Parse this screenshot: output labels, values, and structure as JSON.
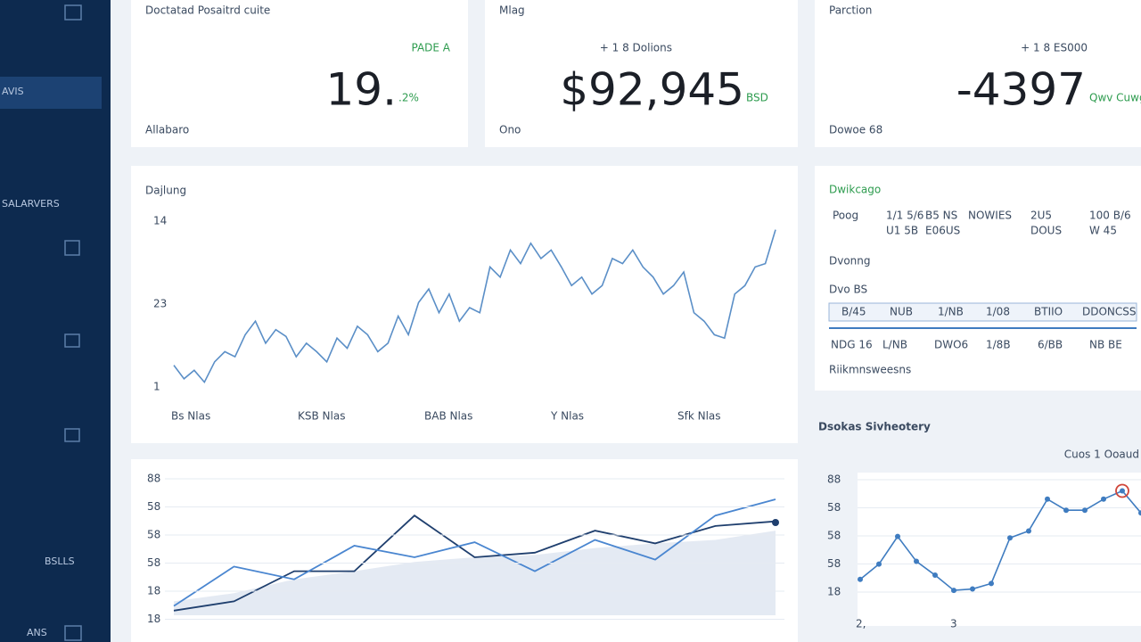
{
  "sidebar": {
    "items": [
      "AVIS",
      "SALARVERS",
      "BSLLS",
      "ANS"
    ]
  },
  "kpis": [
    {
      "title": "Doctatad Posaitrd cuite",
      "delta": "PADE A",
      "value": "19.",
      "unit": ".2%",
      "label": "Allabaro"
    },
    {
      "title": "Mlag",
      "delta": "+ 1 8 Dolions",
      "value": "$92,945",
      "unit": "BSD",
      "label": "Ono"
    },
    {
      "title": "Parction",
      "delta": "+ 1 8 ES000",
      "value": "-4397",
      "unit": "Qwv Cuwg",
      "label": "Dowoe 68"
    }
  ],
  "main_chart": {
    "type": "line",
    "title": "Dajlung",
    "ylim": [
      0,
      100
    ],
    "color": "#5b8fc7",
    "y_labels": [
      "14",
      "23",
      "1"
    ],
    "x_labels": [
      "Bs Nlas",
      "KSB Nlas",
      "BAB Nlas",
      "Y Nlas",
      "Sfk Nlas"
    ],
    "values": [
      16,
      8,
      13,
      6,
      18,
      24,
      21,
      34,
      42,
      29,
      37,
      33,
      21,
      29,
      24,
      18,
      32,
      26,
      39,
      34,
      24,
      29,
      45,
      34,
      53,
      61,
      47,
      58,
      42,
      50,
      47,
      74,
      68,
      84,
      76,
      88,
      79,
      84,
      74,
      63,
      68,
      58,
      63,
      79,
      76,
      84,
      74,
      68,
      58,
      63,
      71,
      47,
      42,
      34,
      32,
      58,
      63,
      74,
      76,
      96
    ]
  },
  "table_panel": {
    "title": "Dwikcago",
    "headers": [
      "Poog",
      "1/1 5/6",
      "B5 NS",
      "NOWIES",
      "2U5",
      "100 B/6"
    ],
    "row": [
      "U1 5B",
      "E06US",
      "DOUS",
      "W 45"
    ],
    "section1": "Dvonng",
    "section2": "Dvo BS",
    "strip": [
      "B/45",
      "NUB",
      "1/NB",
      "1/08",
      "BTIIO",
      "DDONCSS"
    ],
    "row2": [
      "NDG 16",
      "L/NB",
      "DWO6",
      "1/8B",
      "6/BB",
      "NB BE"
    ],
    "footer": "Riikmnsweesns"
  },
  "bottom_chart": {
    "type": "line",
    "ylim": [
      0,
      100
    ],
    "y_labels": [
      "88",
      "58",
      "58",
      "58",
      "18",
      "18"
    ],
    "series": [
      {
        "color": "#c9d6e8",
        "values": [
          12,
          19,
          31,
          38,
          46,
          50,
          52,
          58,
          62,
          65,
          73
        ]
      },
      {
        "color": "#1f3f6e",
        "values": [
          4,
          12,
          38,
          38,
          86,
          50,
          54,
          73,
          62,
          77,
          81
        ]
      },
      {
        "color": "#4a86d0",
        "values": [
          8,
          42,
          31,
          60,
          50,
          63,
          38,
          65,
          48,
          86,
          100
        ]
      }
    ]
  },
  "side_chart": {
    "type": "line",
    "title": "Dsokas Sivheotery",
    "legend": "Cuos 1 Ooaud",
    "ylim": [
      0,
      100
    ],
    "color": "#3f7cc0",
    "highlight_color": "#d0463a",
    "y_labels": [
      "88",
      "58",
      "58",
      "58",
      "18"
    ],
    "x_labels": [
      "2,",
      "3"
    ],
    "values": [
      26,
      37,
      57,
      39,
      29,
      18,
      19,
      23,
      56,
      61,
      84,
      76,
      76,
      84,
      90,
      74
    ],
    "highlight": 14
  }
}
